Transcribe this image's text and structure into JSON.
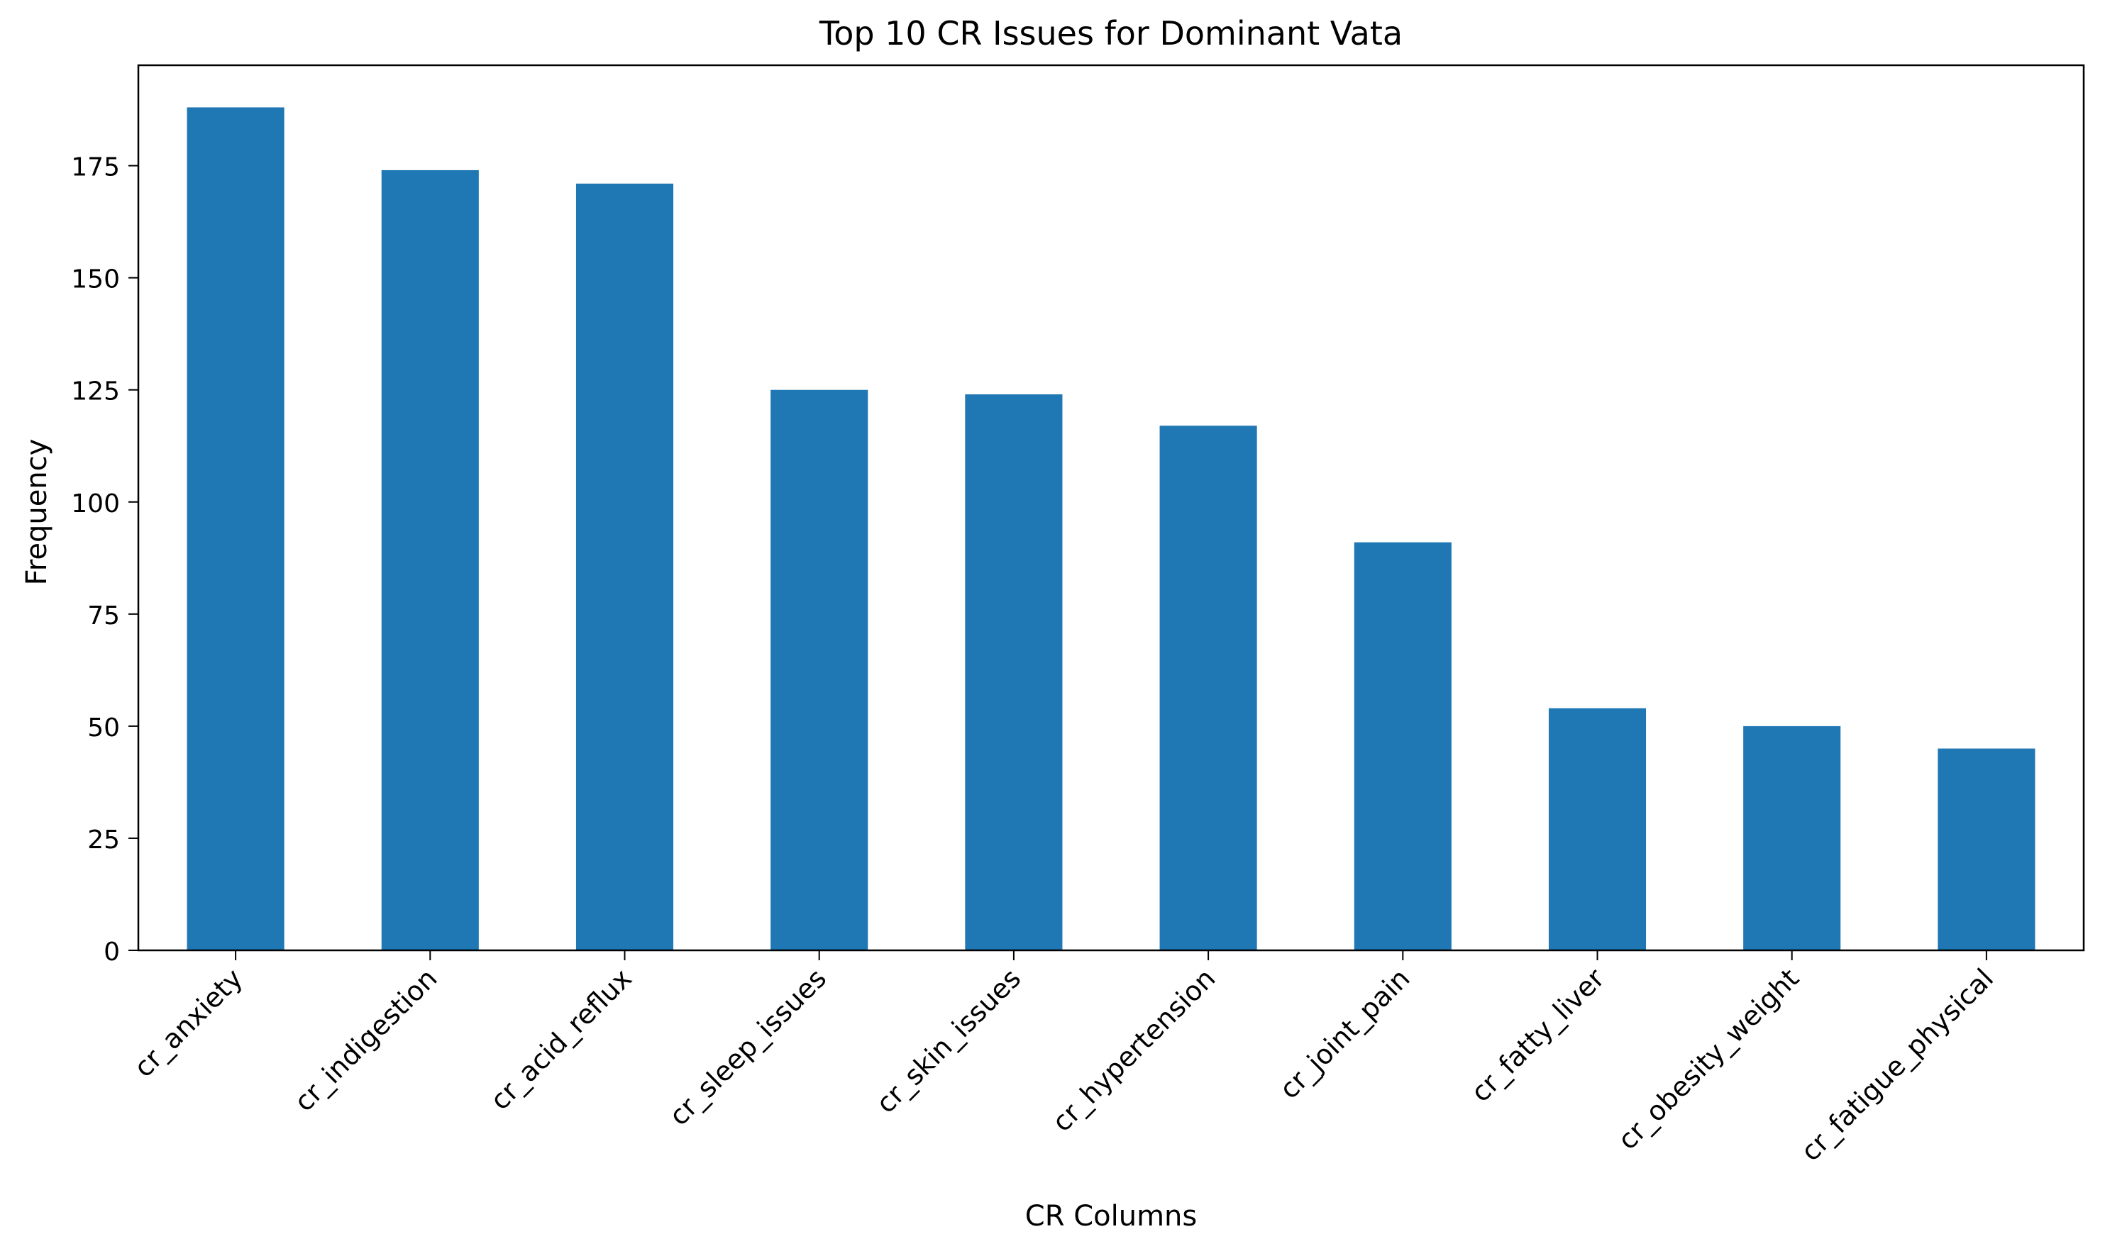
{
  "chart_data": {
    "type": "bar",
    "title": "Top 10 CR Issues for Dominant Vata",
    "xlabel": "CR Columns",
    "ylabel": "Frequency",
    "categories": [
      "cr_anxiety",
      "cr_indigestion",
      "cr_acid_reflux",
      "cr_sleep_issues",
      "cr_skin_issues",
      "cr_hypertension",
      "cr_joint_pain",
      "cr_fatty_liver",
      "cr_obesity_weight",
      "cr_fatigue_physical"
    ],
    "values": [
      188,
      174,
      171,
      125,
      124,
      117,
      91,
      54,
      50,
      45
    ],
    "ylim": [
      0,
      197.4
    ],
    "yticks": [
      0,
      25,
      50,
      75,
      100,
      125,
      150,
      175
    ],
    "bar_color": "#1f77b4",
    "grid": false,
    "legend": false
  }
}
